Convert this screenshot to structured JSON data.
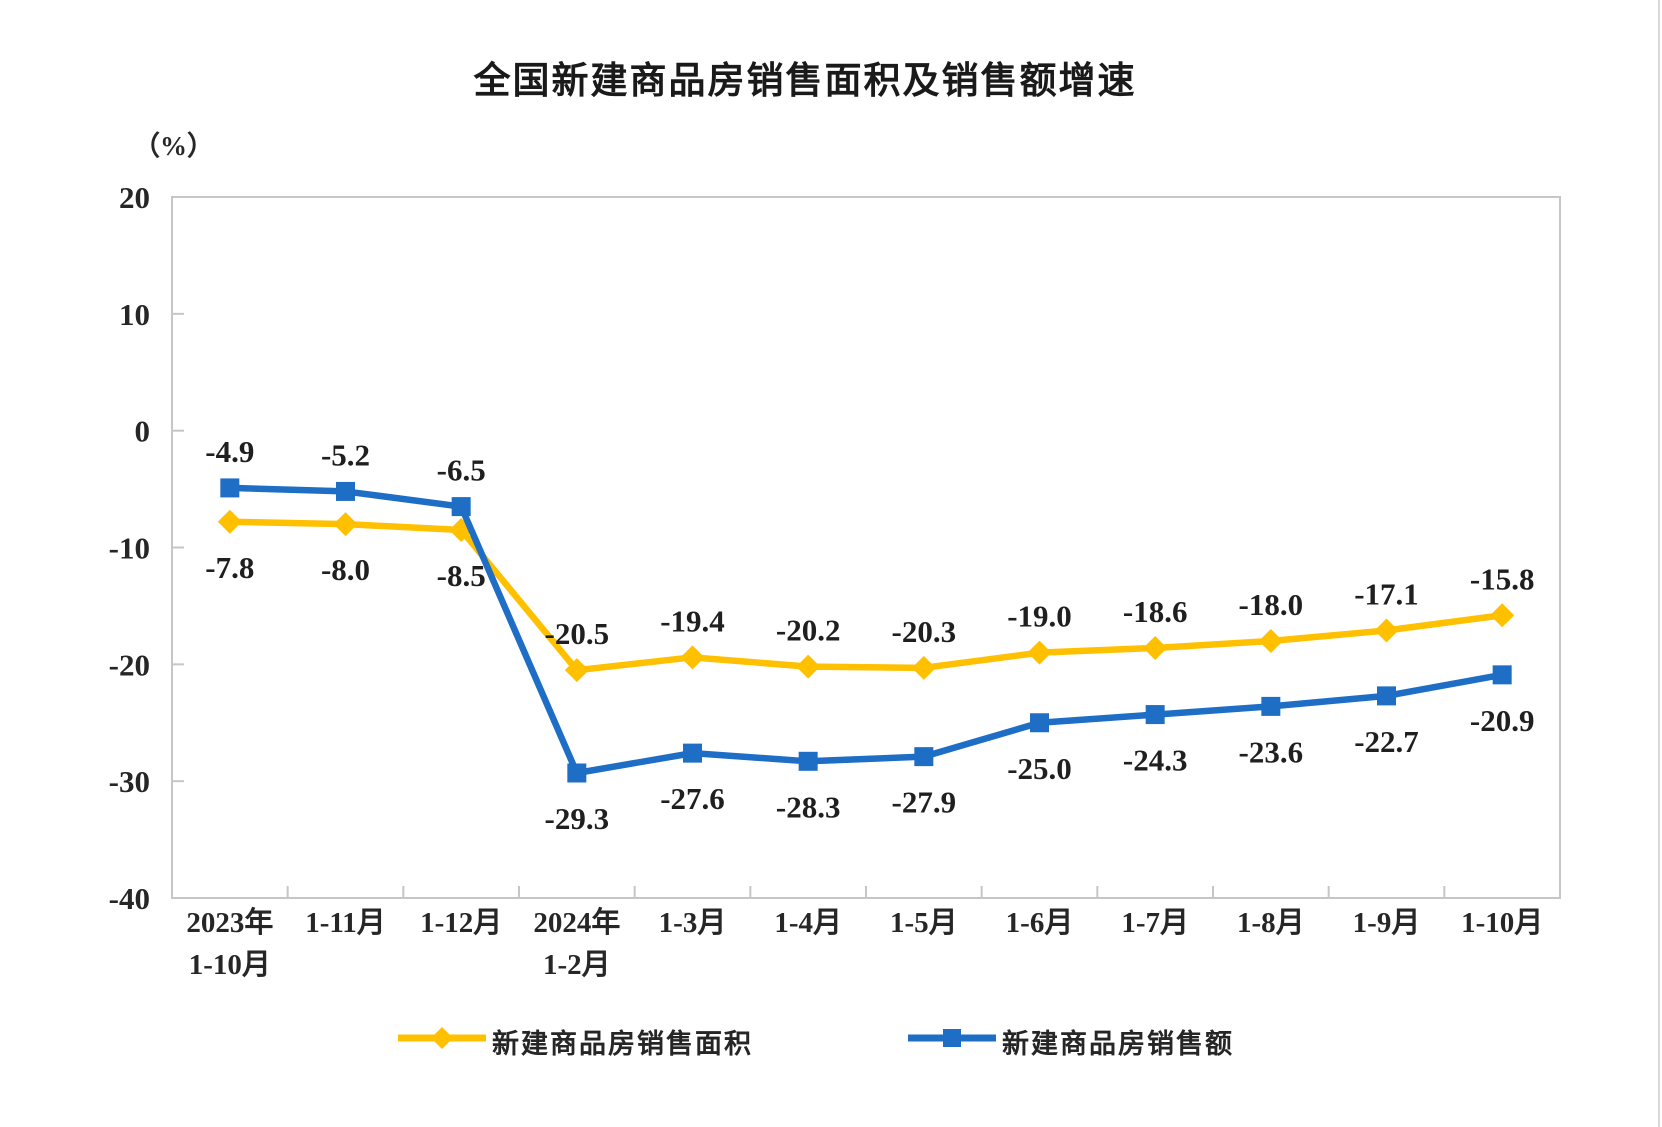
{
  "title": "全国新建商品房销售面积及销售额增速",
  "chart_data": {
    "type": "line",
    "title": "全国新建商品房销售面积及销售额增速",
    "ylabel": "（%）",
    "ylim": [
      -40,
      20
    ],
    "yticks": [
      20,
      10,
      0,
      -10,
      -20,
      -30,
      -40
    ],
    "grid": false,
    "legend_position": "bottom",
    "axis_color": "#c6c6c6",
    "text_color": "#262626",
    "categories": [
      [
        "2023年",
        "1-10月"
      ],
      "1-11月",
      "1-12月",
      [
        "2024年",
        "1-2月"
      ],
      "1-3月",
      "1-4月",
      "1-5月",
      "1-6月",
      "1-7月",
      "1-8月",
      "1-9月",
      "1-10月"
    ],
    "series": [
      {
        "name": "新建商品房销售面积",
        "marker": "diamond",
        "color": "#FFC000",
        "values": [
          -7.8,
          -8.0,
          -8.5,
          -20.5,
          -19.4,
          -20.2,
          -20.3,
          -19.0,
          -18.6,
          -18.0,
          -17.1,
          -15.8
        ],
        "label_side": [
          "below",
          "below",
          "below",
          "above",
          "above",
          "above",
          "above",
          "above",
          "above",
          "above",
          "above",
          "above"
        ]
      },
      {
        "name": "新建商品房销售额",
        "marker": "square",
        "color": "#1E6EC6",
        "values": [
          -4.9,
          -5.2,
          -6.5,
          -29.3,
          -27.6,
          -28.3,
          -27.9,
          -25.0,
          -24.3,
          -23.6,
          -22.7,
          -20.9
        ],
        "label_side": [
          "above",
          "above",
          "above",
          "below",
          "below",
          "below",
          "below",
          "below",
          "below",
          "below",
          "below",
          "below"
        ]
      }
    ]
  }
}
